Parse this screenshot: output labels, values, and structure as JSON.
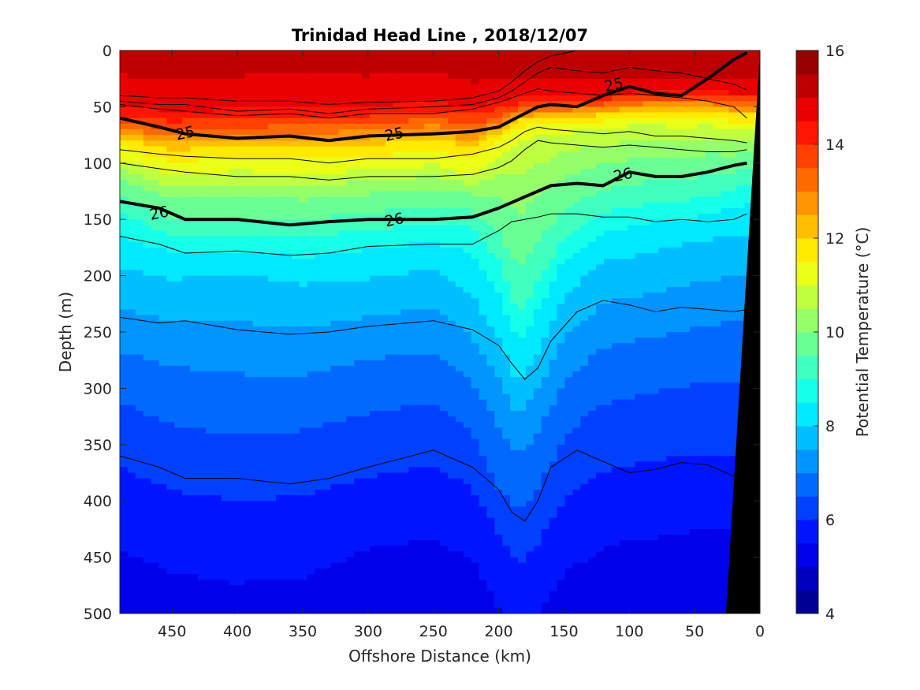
{
  "chart_data": {
    "type": "heatmap",
    "subtype": "filled-contour",
    "title": "Trinidad Head Line , 2018/12/07",
    "xlabel": "Offshore Distance (km)",
    "ylabel": "Depth (m)",
    "colorbar_label": "Potential Temperature (°C)",
    "x_reversed": true,
    "y_reversed": true,
    "xlim": [
      0,
      490
    ],
    "ylim": [
      0,
      500
    ],
    "clim": [
      4,
      16
    ],
    "colormap": "jet",
    "x_ticks": [
      450,
      400,
      350,
      300,
      250,
      200,
      150,
      100,
      50,
      0
    ],
    "y_ticks": [
      0,
      50,
      100,
      150,
      200,
      250,
      300,
      350,
      400,
      450,
      500
    ],
    "colorbar_ticks": [
      4,
      6,
      8,
      10,
      12,
      14,
      16
    ],
    "temperature_profile": {
      "depths": [
        0,
        40,
        55,
        70,
        90,
        115,
        150,
        180,
        210,
        240,
        280,
        320,
        360,
        400,
        440,
        480,
        500
      ],
      "temps": [
        15.3,
        14.8,
        13.5,
        11.8,
        10.8,
        10.0,
        9.2,
        8.4,
        7.9,
        7.5,
        7.0,
        6.6,
        6.2,
        5.9,
        5.6,
        5.3,
        5.2
      ]
    },
    "isotherm_depths": {
      "x": [
        490,
        450,
        400,
        350,
        300,
        250,
        220,
        200,
        185,
        170,
        150,
        120,
        100,
        80,
        60,
        40,
        20,
        10
      ],
      "layers": [
        [
          10,
          12,
          12,
          10,
          12,
          10,
          15,
          14,
          13,
          14,
          14,
          15,
          14,
          14,
          14,
          14,
          14,
          14
        ],
        [
          28,
          30,
          28,
          26,
          28,
          25,
          35,
          30,
          28,
          30,
          30,
          31,
          30,
          30,
          30,
          30,
          30,
          30
        ],
        [
          55,
          60,
          58,
          56,
          55,
          50,
          55,
          50,
          45,
          45,
          45,
          42,
          40,
          38,
          38,
          38,
          40,
          40
        ],
        [
          95,
          110,
          105,
          108,
          105,
          100,
          110,
          90,
          75,
          72,
          70,
          68,
          65,
          65,
          66,
          65,
          70,
          70
        ],
        [
          140,
          160,
          160,
          162,
          155,
          150,
          150,
          180,
          230,
          200,
          160,
          140,
          135,
          130,
          130,
          125,
          120,
          115
        ],
        [
          195,
          205,
          200,
          210,
          205,
          195,
          220,
          260,
          300,
          270,
          220,
          190,
          185,
          180,
          175,
          170,
          165,
          165
        ],
        [
          250,
          260,
          265,
          270,
          255,
          250,
          275,
          310,
          340,
          320,
          275,
          245,
          240,
          235,
          230,
          225,
          220,
          220
        ],
        [
          300,
          320,
          330,
          325,
          310,
          300,
          330,
          380,
          400,
          380,
          330,
          300,
          295,
          290,
          285,
          280,
          280,
          280
        ],
        [
          360,
          380,
          390,
          385,
          370,
          360,
          380,
          420,
          450,
          430,
          390,
          365,
          360,
          355,
          350,
          350,
          350,
          350
        ],
        [
          420,
          440,
          450,
          445,
          420,
          410,
          430,
          470,
          490,
          480,
          440,
          420,
          410,
          410,
          405,
          400,
          400,
          400
        ]
      ]
    },
    "contour_lines": {
      "x": [
        490,
        460,
        440,
        400,
        360,
        330,
        300,
        250,
        220,
        200,
        190,
        180,
        170,
        160,
        140,
        120,
        100,
        80,
        60,
        40,
        20,
        10
      ],
      "thin": [
        [
          40,
          42,
          42,
          45,
          45,
          48,
          46,
          45,
          42,
          36,
          28,
          18,
          10,
          5,
          0,
          0,
          0,
          0,
          0,
          0,
          0,
          0
        ],
        [
          45,
          48,
          48,
          54,
          52,
          56,
          52,
          50,
          48,
          42,
          36,
          28,
          20,
          15,
          18,
          20,
          15,
          18,
          20,
          25,
          30,
          35
        ],
        [
          48,
          52,
          54,
          58,
          56,
          60,
          56,
          56,
          52,
          46,
          42,
          38,
          34,
          36,
          38,
          40,
          38,
          40,
          42,
          45,
          50,
          60
        ],
        [
          88,
          92,
          94,
          96,
          96,
          100,
          96,
          96,
          92,
          86,
          80,
          72,
          68,
          70,
          72,
          74,
          72,
          76,
          76,
          78,
          80,
          82
        ],
        [
          100,
          105,
          108,
          112,
          112,
          115,
          112,
          112,
          110,
          104,
          98,
          88,
          80,
          82,
          84,
          86,
          84,
          86,
          88,
          90,
          90,
          88
        ],
        [
          165,
          172,
          180,
          178,
          182,
          180,
          174,
          172,
          172,
          160,
          152,
          150,
          148,
          145,
          145,
          148,
          148,
          152,
          150,
          152,
          150,
          145
        ],
        [
          237,
          242,
          240,
          248,
          252,
          250,
          245,
          240,
          248,
          262,
          278,
          292,
          282,
          258,
          232,
          222,
          226,
          232,
          228,
          230,
          232,
          230
        ],
        [
          360,
          370,
          380,
          380,
          385,
          380,
          370,
          355,
          370,
          390,
          410,
          418,
          400,
          370,
          355,
          365,
          375,
          372,
          366,
          368,
          378,
          380
        ]
      ],
      "bold": [
        {
          "label": "25",
          "depths": [
            60,
            68,
            74,
            78,
            76,
            80,
            76,
            74,
            72,
            68,
            62,
            56,
            50,
            48,
            50,
            40,
            32,
            38,
            40,
            25,
            8,
            2
          ]
        },
        {
          "label": "26",
          "depths": [
            134,
            140,
            150,
            150,
            155,
            152,
            150,
            150,
            148,
            140,
            135,
            130,
            125,
            120,
            118,
            120,
            108,
            112,
            112,
            108,
            102,
            100
          ]
        }
      ]
    },
    "contour_labels": [
      {
        "text": "25",
        "x": 440,
        "y": 73
      },
      {
        "text": "25",
        "x": 280,
        "y": 74
      },
      {
        "text": "25",
        "x": 112,
        "y": 30
      },
      {
        "text": "26",
        "x": 460,
        "y": 144
      },
      {
        "text": "26",
        "x": 280,
        "y": 150
      },
      {
        "text": "26",
        "x": 105,
        "y": 110
      }
    ],
    "bottom_topography": {
      "depths": [
        0,
        500
      ],
      "x_at_depth": [
        0,
        26
      ]
    }
  }
}
